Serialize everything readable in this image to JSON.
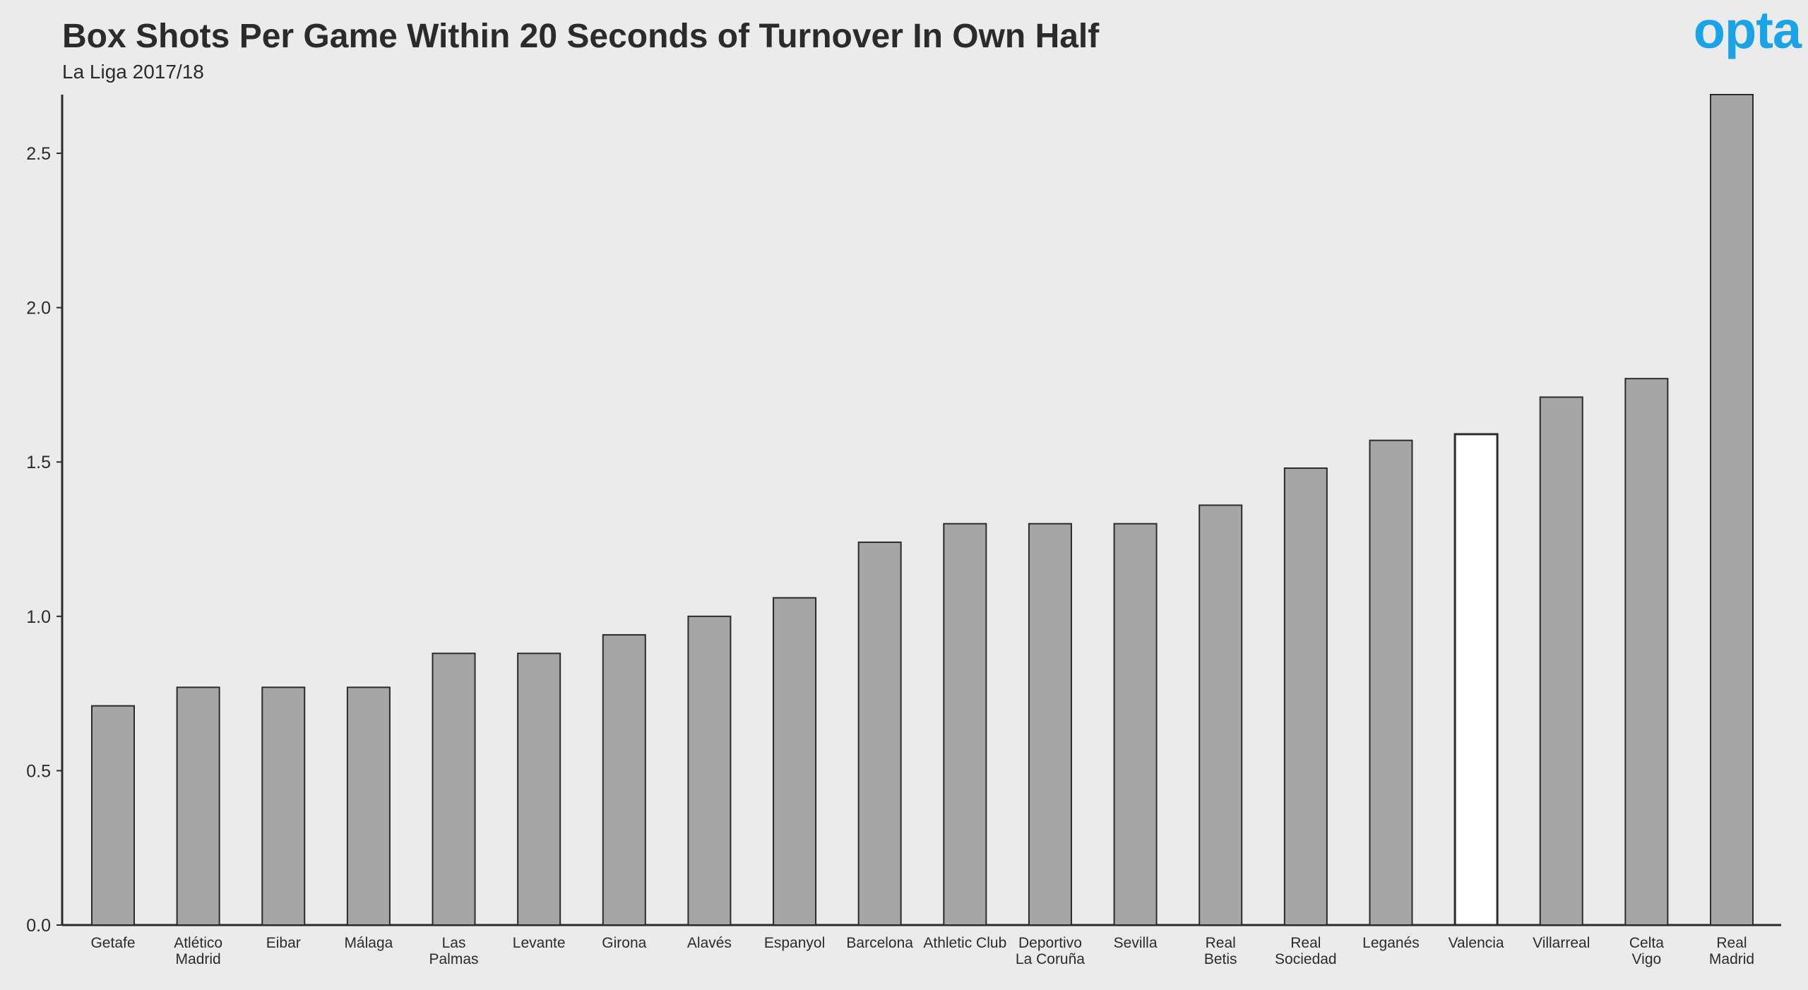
{
  "brand": {
    "logo_text": "opta",
    "color": "#1aa3e8"
  },
  "chart_data": {
    "type": "bar",
    "title": "Box Shots Per Game Within 20 Seconds of Turnover In Own Half",
    "subtitle": "La Liga 2017/18",
    "xlabel": "",
    "ylabel": "",
    "ylim": [
      0,
      2.69
    ],
    "yticks": [
      "0.0",
      "0.5",
      "1.0",
      "1.5",
      "2.0",
      "2.5"
    ],
    "grid": false,
    "categories": [
      "Getafe",
      "Atlético\nMadrid",
      "Eibar",
      "Málaga",
      "Las\nPalmas",
      "Levante",
      "Girona",
      "Alavés",
      "Espanyol",
      "Barcelona",
      "Athletic Club",
      "Deportivo\nLa Coruña",
      "Sevilla",
      "Real\nBetis",
      "Real\nSociedad",
      "Leganés",
      "Valencia",
      "Villarreal",
      "Celta\nVigo",
      "Real\nMadrid"
    ],
    "values": [
      0.71,
      0.77,
      0.77,
      0.77,
      0.88,
      0.88,
      0.94,
      1.0,
      1.06,
      1.24,
      1.3,
      1.3,
      1.3,
      1.36,
      1.48,
      1.57,
      1.59,
      1.71,
      1.77,
      2.69
    ],
    "highlight": "Valencia",
    "colors": {
      "bar": "#a6a6a6",
      "highlight": "#ffffff",
      "outline": "#2b2b2b",
      "background": "#ebebeb"
    }
  }
}
